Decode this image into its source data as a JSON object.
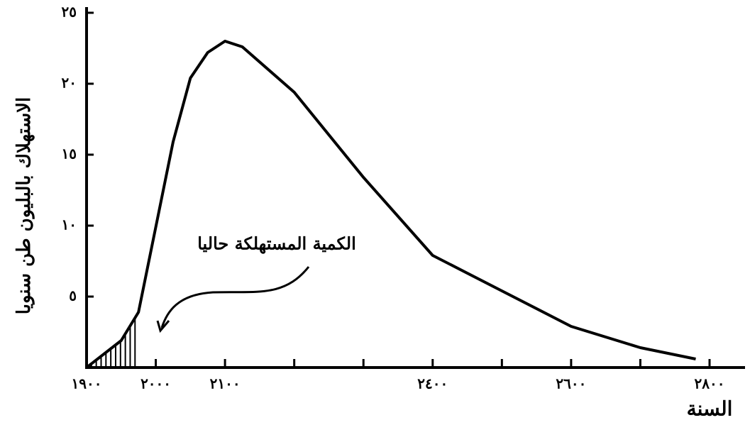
{
  "chart_data": {
    "type": "line",
    "y_label": "الاستهلاك بالبليون طن سنويا",
    "x_label": "السنة",
    "annotation": "الكمية المستهلكة حاليا",
    "x": [
      1900,
      1950,
      1975,
      2000,
      2025,
      2050,
      2075,
      2100,
      2125,
      2200,
      2300,
      2400,
      2500,
      2600,
      2700,
      2780
    ],
    "values": [
      0,
      1.9,
      3.9,
      9.9,
      15.9,
      20.4,
      22.2,
      23,
      22.6,
      19.4,
      13.4,
      7.9,
      5.4,
      2.9,
      1.4,
      0.6
    ],
    "color": "#000000",
    "shaded_until": 1970,
    "xlim": [
      1900,
      2800
    ],
    "xticks": [
      {
        "value": 1900,
        "label": "١٩٠٠"
      },
      {
        "value": 2000,
        "label": "٢٠٠٠"
      },
      {
        "value": 2100,
        "label": "٢١٠٠"
      },
      2200,
      2300,
      {
        "value": 2400,
        "label": "٢٤٠٠"
      },
      2500,
      {
        "value": 2600,
        "label": "٢٦٠٠"
      },
      2700,
      {
        "value": 2800,
        "label": "٢٨٠٠"
      }
    ],
    "ylim": [
      0,
      25
    ],
    "yticks": [
      {
        "value": 5,
        "label": "٥"
      },
      {
        "value": 10,
        "label": "١٠"
      },
      {
        "value": 15,
        "label": "١٥"
      },
      {
        "value": 20,
        "label": "٢٠"
      },
      {
        "value": 25,
        "label": "٢٥"
      }
    ]
  }
}
